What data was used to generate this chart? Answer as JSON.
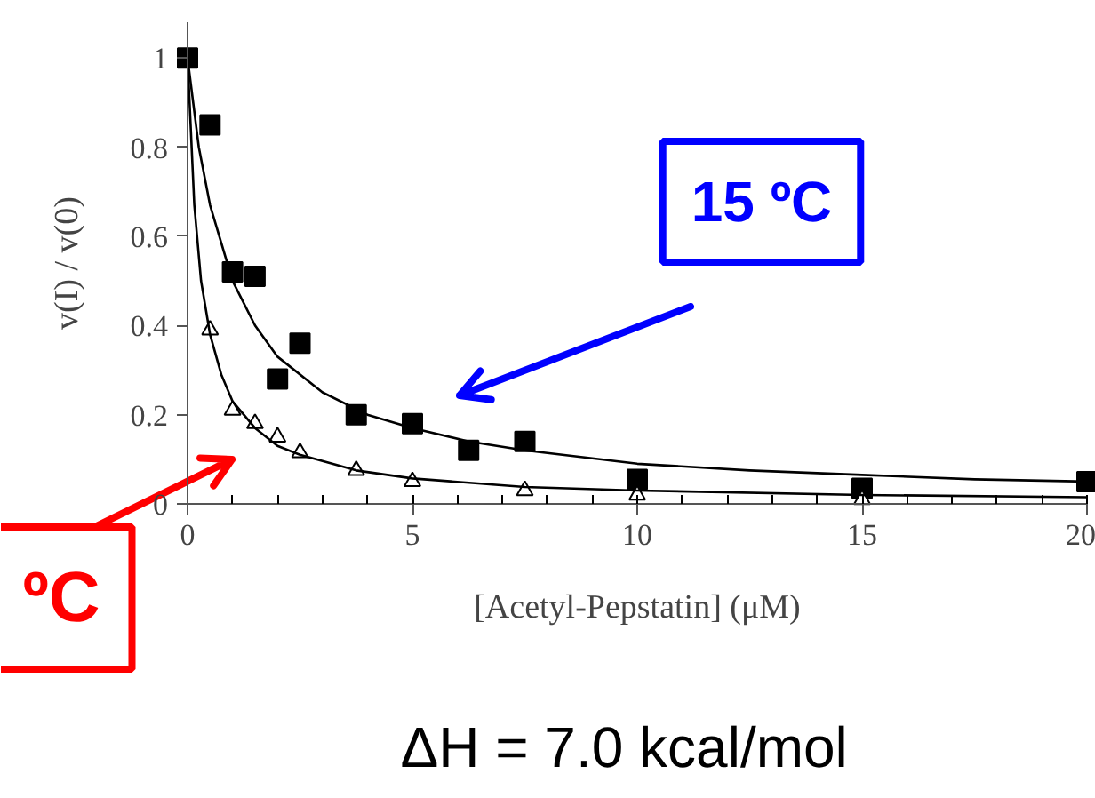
{
  "chart_data": {
    "type": "scatter",
    "xlabel": "[Acetyl-Pepstatin] (μM)",
    "ylabel": "v(I) / v(0)",
    "xlim": [
      0,
      20
    ],
    "ylim": [
      0,
      1.08
    ],
    "xticks": [
      0,
      5,
      10,
      15,
      20
    ],
    "yticks": [
      {
        "value": 0,
        "label": "0"
      },
      0.2,
      0.4,
      0.6,
      0.8,
      1
    ],
    "grid": false,
    "series": [
      {
        "type": "scatter",
        "marker": "square",
        "color": "#000000",
        "x": [
          0,
          0.5,
          1,
          1.5,
          2,
          2.5,
          3.75,
          5,
          6.25,
          7.5,
          10,
          15,
          20
        ],
        "values": [
          1.0,
          0.85,
          0.52,
          0.51,
          0.28,
          0.36,
          0.2,
          0.18,
          0.12,
          0.14,
          0.055,
          0.035,
          0.05
        ]
      },
      {
        "type": "scatter",
        "marker": "triangle",
        "color": "#000000",
        "x": [
          0.5,
          1,
          1.5,
          2,
          2.5,
          3.75,
          5,
          7.5,
          10,
          15
        ],
        "values": [
          0.39,
          0.21,
          0.18,
          0.15,
          0.115,
          0.075,
          0.05,
          0.03,
          0.02,
          0.01
        ]
      },
      {
        "type": "line",
        "color": "#000000",
        "x": [
          0,
          0.25,
          0.5,
          1,
          1.5,
          2,
          3,
          4,
          5,
          6.25,
          7.5,
          10,
          12.5,
          15,
          17.5,
          20
        ],
        "values": [
          1,
          0.8,
          0.67,
          0.5,
          0.4,
          0.33,
          0.25,
          0.2,
          0.17,
          0.14,
          0.12,
          0.09,
          0.075,
          0.065,
          0.055,
          0.05
        ]
      },
      {
        "type": "line",
        "color": "#000000",
        "x": [
          0,
          0.15,
          0.3,
          0.5,
          0.75,
          1,
          1.5,
          2,
          2.5,
          3.75,
          5,
          7.5,
          10,
          15,
          20
        ],
        "values": [
          1,
          0.67,
          0.5,
          0.38,
          0.29,
          0.23,
          0.17,
          0.13,
          0.11,
          0.075,
          0.057,
          0.038,
          0.03,
          0.02,
          0.015
        ]
      }
    ],
    "annotations": [
      "15 ºC",
      "ºC",
      "ΔH =  7.0 kcal/mol"
    ]
  }
}
